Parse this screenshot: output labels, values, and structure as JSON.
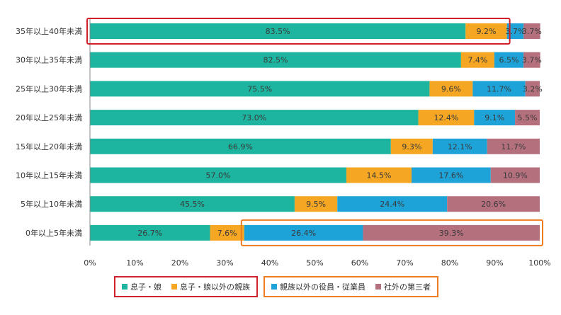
{
  "chart_data": {
    "type": "bar",
    "orientation": "horizontal",
    "stacked": true,
    "categories": [
      "35年以上40年未満",
      "30年以上35年未満",
      "25年以上30年未満",
      "20年以上25年未満",
      "15年以上20年未満",
      "10年以上15年未満",
      "5年以上10年未満",
      "0年以上5年未満"
    ],
    "series": [
      {
        "name": "息子・娘",
        "color": "#1eb5a0",
        "values": [
          83.5,
          82.5,
          75.5,
          73.0,
          66.9,
          57.0,
          45.5,
          26.7
        ],
        "labels": [
          "83.5%",
          "82.5%",
          "75.5%",
          "73.0%",
          "66.9%",
          "57.0%",
          "45.5%",
          "26.7%"
        ]
      },
      {
        "name": "息子・娘以外の親族",
        "color": "#f5a623",
        "values": [
          9.2,
          7.4,
          9.6,
          12.4,
          9.3,
          14.5,
          9.5,
          7.6
        ],
        "labels": [
          "9.2%",
          "7.4%",
          "9.6%",
          "12.4%",
          "9.3%",
          "14.5%",
          "9.5%",
          "7.6%"
        ]
      },
      {
        "name": "親族以外の役員・従業員",
        "color": "#1ea3d9",
        "values": [
          3.7,
          6.5,
          11.7,
          9.1,
          12.1,
          17.6,
          24.4,
          26.4
        ],
        "labels": [
          "3.7%",
          "6.5%",
          "11.7%",
          "9.1%",
          "12.1%",
          "17.6%",
          "24.4%",
          "26.4%"
        ]
      },
      {
        "name": "社外の第三者",
        "color": "#b5707e",
        "values": [
          3.7,
          3.7,
          3.2,
          5.5,
          11.7,
          10.9,
          20.6,
          39.3
        ],
        "labels": [
          "3.7%",
          "3.7%",
          "3.2%",
          "5.5%",
          "11.7%",
          "10.9%",
          "20.6%",
          "39.3%"
        ]
      }
    ],
    "x_ticks": [
      "0%",
      "10%",
      "20%",
      "30%",
      "40%",
      "50%",
      "60%",
      "70%",
      "80%",
      "90%",
      "100%"
    ],
    "xlim": [
      0,
      100
    ],
    "grid": false,
    "legend_position": "bottom",
    "highlight_color_red": "#d0202a",
    "highlight_color_orange": "#ee7d22",
    "highlights": [
      {
        "color": "red",
        "category": "35年以上40年未満",
        "series": [
          "息子・娘",
          "息子・娘以外の親族"
        ]
      },
      {
        "color": "orange",
        "category": "0年以上5年未満",
        "series": [
          "親族以外の役員・従業員",
          "社外の第三者"
        ]
      }
    ],
    "legend_groups": [
      {
        "color": "red",
        "series": [
          "息子・娘",
          "息子・娘以外の親族"
        ]
      },
      {
        "color": "orange",
        "series": [
          "親族以外の役員・従業員",
          "社外の第三者"
        ]
      }
    ]
  }
}
